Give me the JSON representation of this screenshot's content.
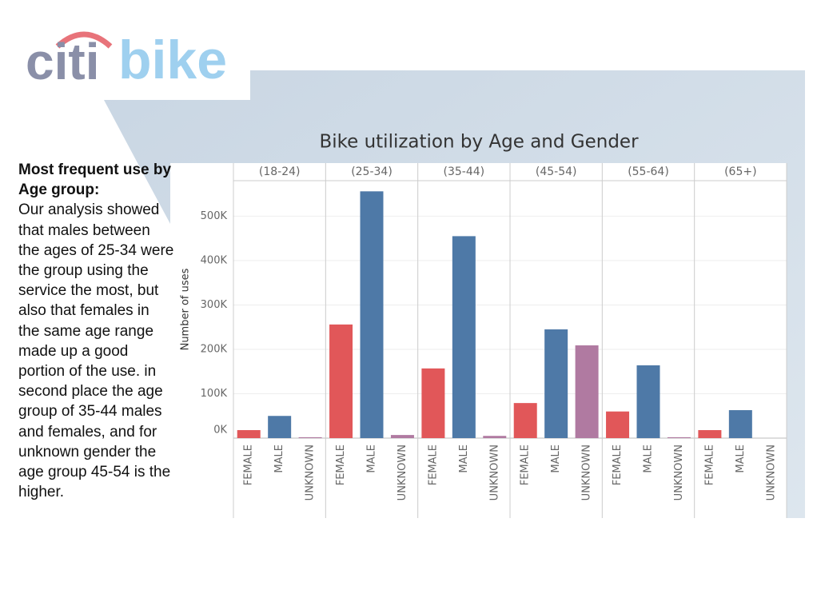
{
  "logo": {
    "part1": "citi",
    "part2": "bike"
  },
  "sidebar": {
    "heading": "Most frequent use by Age group:",
    "body": "Our analysis showed that males between the ages of 25-34 were the group using the service the most, but also that females in the same age range made up a good portion of the use. in second place the age group of 35-44 males and females, and for unknown gender the age group 45-54 is the higher."
  },
  "chart_data": {
    "type": "bar",
    "title": "Bike utilization by Age and Gender",
    "y_label": "Number of uses",
    "categories": [
      "(18-24)",
      "(25-34)",
      "(35-44)",
      "(45-54)",
      "(55-64)",
      "(65+)"
    ],
    "series": [
      {
        "name": "FEMALE",
        "color": "#e15759",
        "values": [
          18000,
          256000,
          157000,
          79000,
          60000,
          18000
        ]
      },
      {
        "name": "MALE",
        "color": "#4e79a7",
        "values": [
          50000,
          556000,
          455000,
          245000,
          164000,
          63000
        ]
      },
      {
        "name": "UNKNOWN",
        "color": "#b07aa1",
        "values": [
          2000,
          7000,
          5000,
          209000,
          2000,
          0
        ]
      }
    ],
    "ylim": [
      0,
      580000
    ],
    "yticks": [
      {
        "value": 0,
        "label": "0K"
      },
      {
        "value": 100000,
        "label": "100K"
      },
      {
        "value": 200000,
        "label": "200K"
      },
      {
        "value": 300000,
        "label": "300K"
      },
      {
        "value": 400000,
        "label": "400K"
      },
      {
        "value": 500000,
        "label": "500K"
      }
    ],
    "grid": true
  }
}
